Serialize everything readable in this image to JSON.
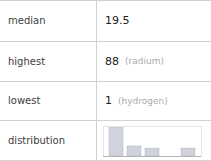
{
  "chart_data": {
    "type": "bar",
    "annotations": [
      [
        "median",
        "19.5"
      ],
      [
        "highest",
        "88",
        "(radium)"
      ],
      [
        "lowest",
        "1",
        "(hydrogen)"
      ],
      [
        "distribution"
      ]
    ],
    "categories": [
      null,
      null,
      null,
      null,
      null
    ],
    "values": [
      4.0,
      1.4,
      1.1,
      0.0,
      1.1
    ],
    "color": "#d0d3db",
    "ylim": [
      0,
      4.2
    ],
    "tick_labels": false
  }
}
